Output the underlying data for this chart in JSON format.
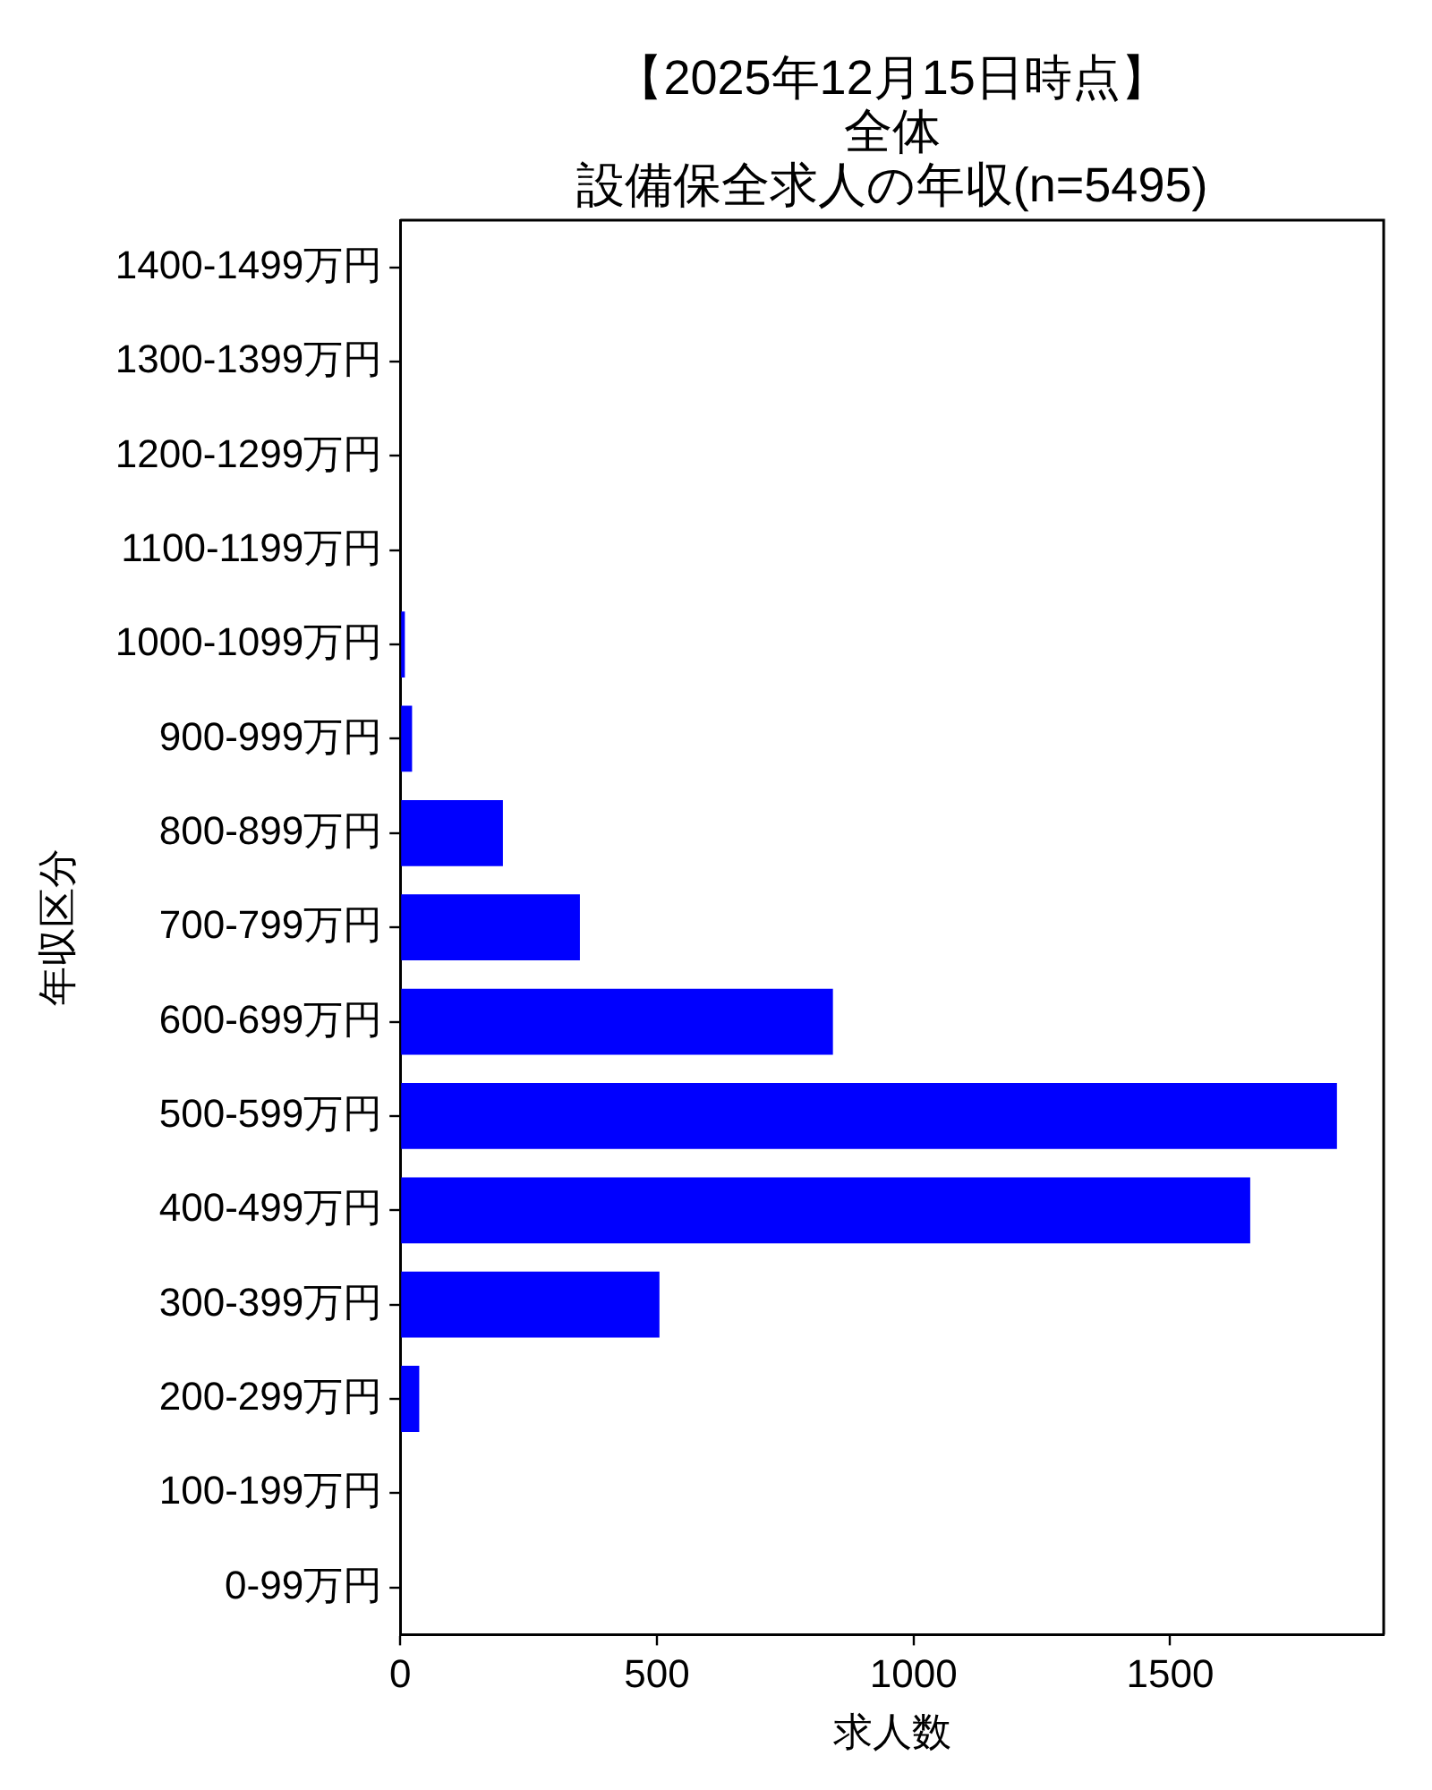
{
  "chart_data": {
    "type": "bar",
    "orientation": "horizontal",
    "annotations": [
      "【2025年12月15日時点】"
    ],
    "subtitle": "全体",
    "title": "設備保全求人の年収(n=5495)",
    "xlabel": "求人数",
    "ylabel": "年収区分",
    "categories": [
      "1400-1499万円",
      "1300-1399万円",
      "1200-1299万円",
      "1100-1199万円",
      "1000-1099万円",
      "900-999万円",
      "800-899万円",
      "700-799万円",
      "600-699万円",
      "500-599万円",
      "400-499万円",
      "300-399万円",
      "200-299万円",
      "100-199万円",
      "0-99万円"
    ],
    "values": [
      0,
      0,
      0,
      0,
      9,
      23,
      200,
      350,
      843,
      1825,
      1656,
      505,
      37,
      0,
      0
    ],
    "color": "#0000ff",
    "xlim": [
      0,
      1916
    ],
    "xticks": [
      0,
      500,
      1000,
      1500
    ]
  }
}
